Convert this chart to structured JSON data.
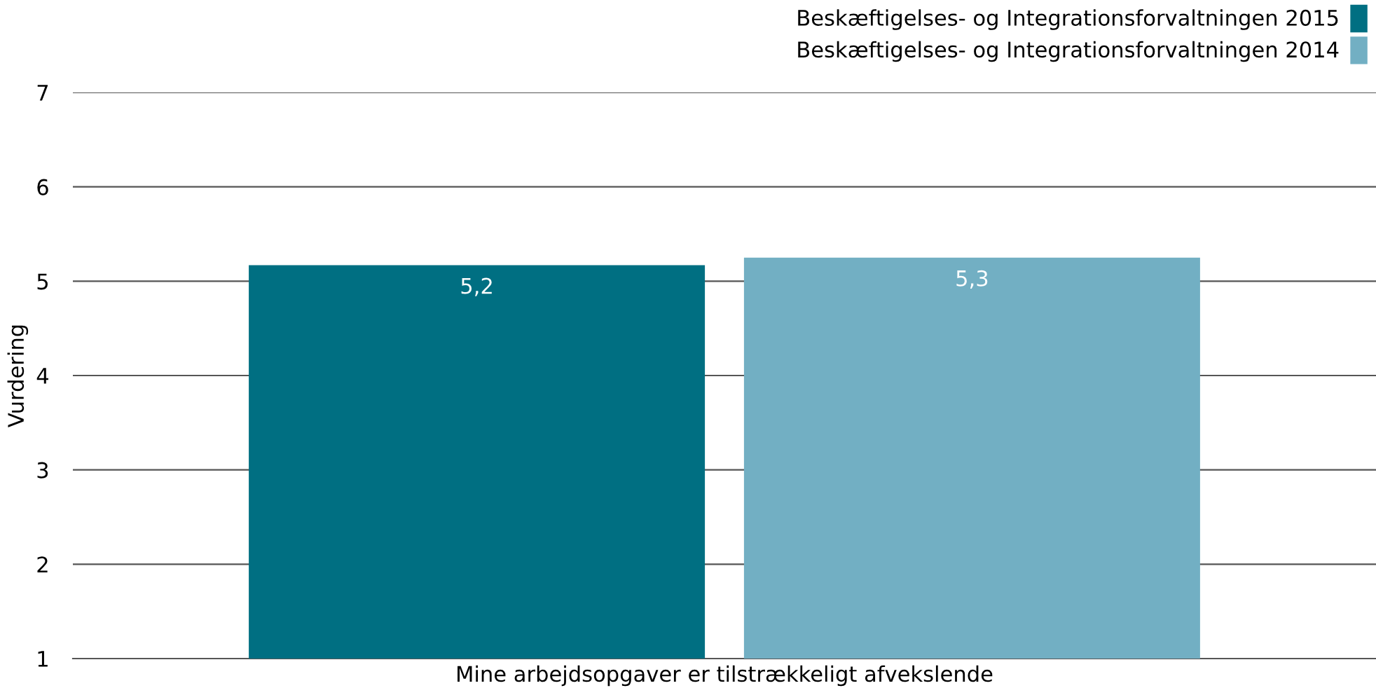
{
  "chart_data": {
    "type": "bar",
    "ylabel": "Vurdering",
    "categories": [
      "Mine arbejdsopgaver er tilstrækkeligt afvekslende"
    ],
    "series": [
      {
        "name": "Beskæftigelses- og Integrationsforvaltningen 2015",
        "color": "#006f82",
        "values": [
          5.17
        ],
        "value_labels": [
          "5,2"
        ]
      },
      {
        "name": "Beskæftigelses- og Integrationsforvaltningen 2014",
        "color": "#72afc3",
        "values": [
          5.25
        ],
        "value_labels": [
          "5,3"
        ]
      }
    ],
    "ylim": [
      1,
      7
    ],
    "yticks": [
      1,
      2,
      3,
      4,
      5,
      6,
      7
    ],
    "grid": "y",
    "legend": "top right"
  }
}
